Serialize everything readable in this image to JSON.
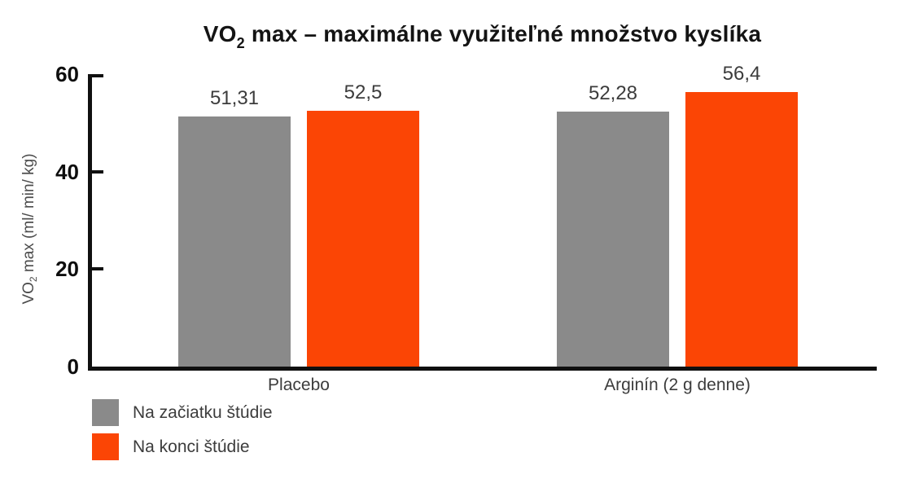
{
  "title": {
    "prefix": "VO",
    "sub": "2",
    "rest": " max – maximálne využiteľné množstvo kyslíka"
  },
  "y_axis": {
    "label_prefix": "VO",
    "label_sub": "2",
    "label_rest": " max (ml/ min/ kg)"
  },
  "chart_data": {
    "type": "bar",
    "title": "VO2 max – maximálne využiteľné množstvo kyslíka",
    "xlabel": "",
    "ylabel": "VO2 max (ml/ min/ kg)",
    "categories": [
      "Placebo",
      "Arginín (2 g denne)"
    ],
    "series": [
      {
        "name": "Na začiatku štúdie",
        "color": "#8A8A8A",
        "values": [
          51.31,
          52.28
        ],
        "value_labels": [
          "51,31",
          "52,28"
        ]
      },
      {
        "name": "Na konci štúdie",
        "color": "#FB4505",
        "values": [
          52.5,
          56.4
        ],
        "value_labels": [
          "52,5",
          "56,4"
        ]
      }
    ],
    "ylim": [
      0,
      60
    ],
    "yticks": [
      0,
      20,
      40,
      60
    ],
    "grid": false,
    "legend_position": "bottom-left",
    "decimal_separator": ","
  }
}
